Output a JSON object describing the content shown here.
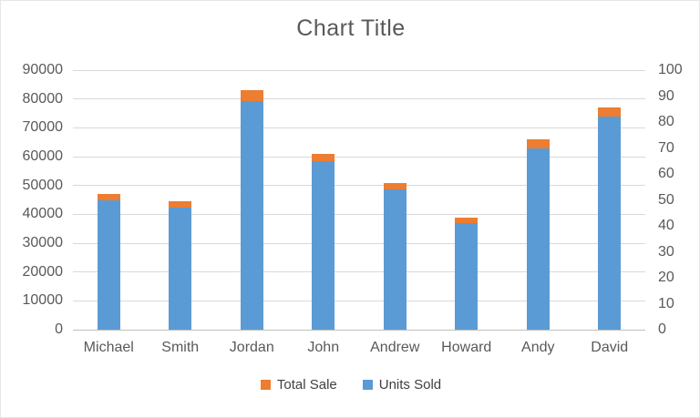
{
  "chart_data": {
    "type": "bar",
    "title": "Chart Title",
    "categories": [
      "Michael",
      "Smith",
      "Jordan",
      "John",
      "Andrew",
      "Howard",
      "Andy",
      "David"
    ],
    "series": [
      {
        "name": "Total Sale",
        "axis": "left",
        "color": "#ED7D31",
        "values": [
          47000,
          44500,
          83000,
          61000,
          51000,
          39000,
          66000,
          77000
        ]
      },
      {
        "name": "Units Sold",
        "axis": "right",
        "color": "#5B9BD5",
        "values": [
          50,
          47,
          88,
          65,
          54,
          41,
          70,
          82
        ]
      }
    ],
    "left_axis": {
      "min": 0,
      "max": 90000,
      "step": 10000,
      "ticks": [
        "90000",
        "80000",
        "70000",
        "60000",
        "50000",
        "40000",
        "30000",
        "20000",
        "10000",
        "0"
      ]
    },
    "right_axis": {
      "min": 0,
      "max": 100,
      "step": 10,
      "ticks": [
        "100",
        "90",
        "80",
        "70",
        "60",
        "50",
        "40",
        "30",
        "20",
        "10",
        "0"
      ]
    },
    "legend_position": "bottom",
    "grid": true,
    "colors": {
      "grid": "#d9d9d9",
      "baseline": "#bfbfbf",
      "axis_text": "#595959",
      "title_text": "#595959",
      "legend_text": "#404040"
    }
  }
}
